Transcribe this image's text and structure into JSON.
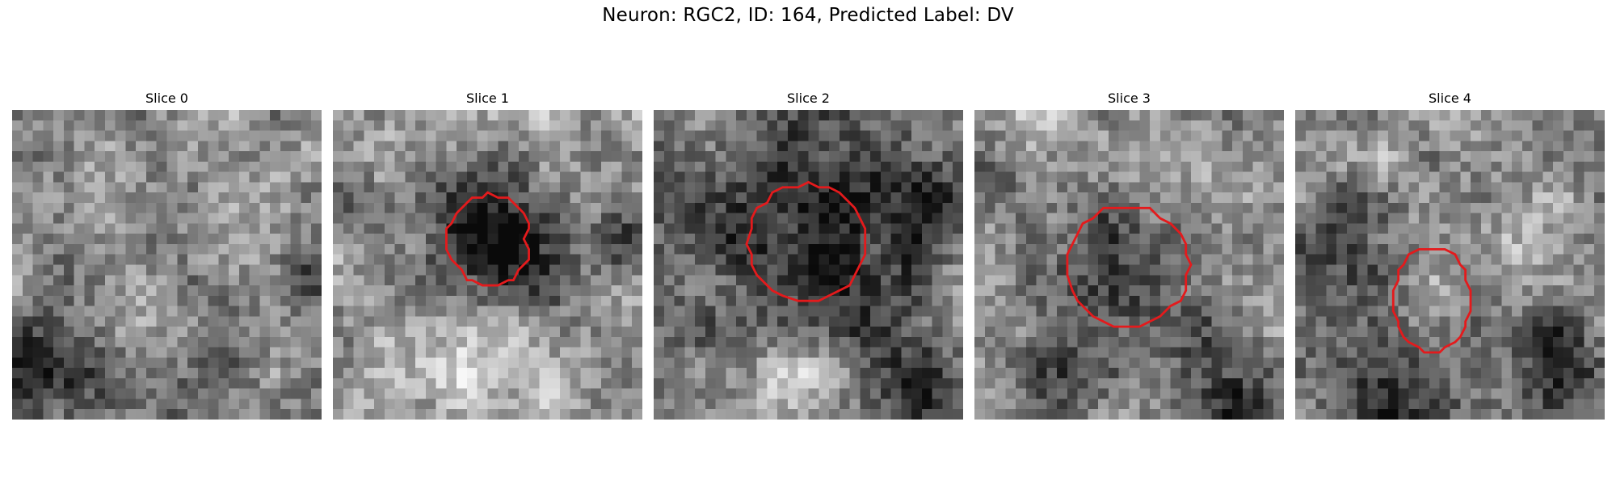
{
  "figure": {
    "title": "Neuron: RGC2, ID: 164, Predicted Label: DV"
  },
  "contour_color": "#e41a1c",
  "panels": [
    {
      "title": "Slice 0",
      "seed": 11,
      "base": 0.58,
      "contrast": 0.3,
      "has_contour": false
    },
    {
      "title": "Slice 1",
      "seed": 23,
      "base": 0.62,
      "contrast": 0.35,
      "has_contour": true
    },
    {
      "title": "Slice 2",
      "seed": 37,
      "base": 0.55,
      "contrast": 0.35,
      "has_contour": true
    },
    {
      "title": "Slice 3",
      "seed": 41,
      "base": 0.6,
      "contrast": 0.32,
      "has_contour": true
    },
    {
      "title": "Slice 4",
      "seed": 53,
      "base": 0.6,
      "contrast": 0.35,
      "has_contour": true
    }
  ]
}
